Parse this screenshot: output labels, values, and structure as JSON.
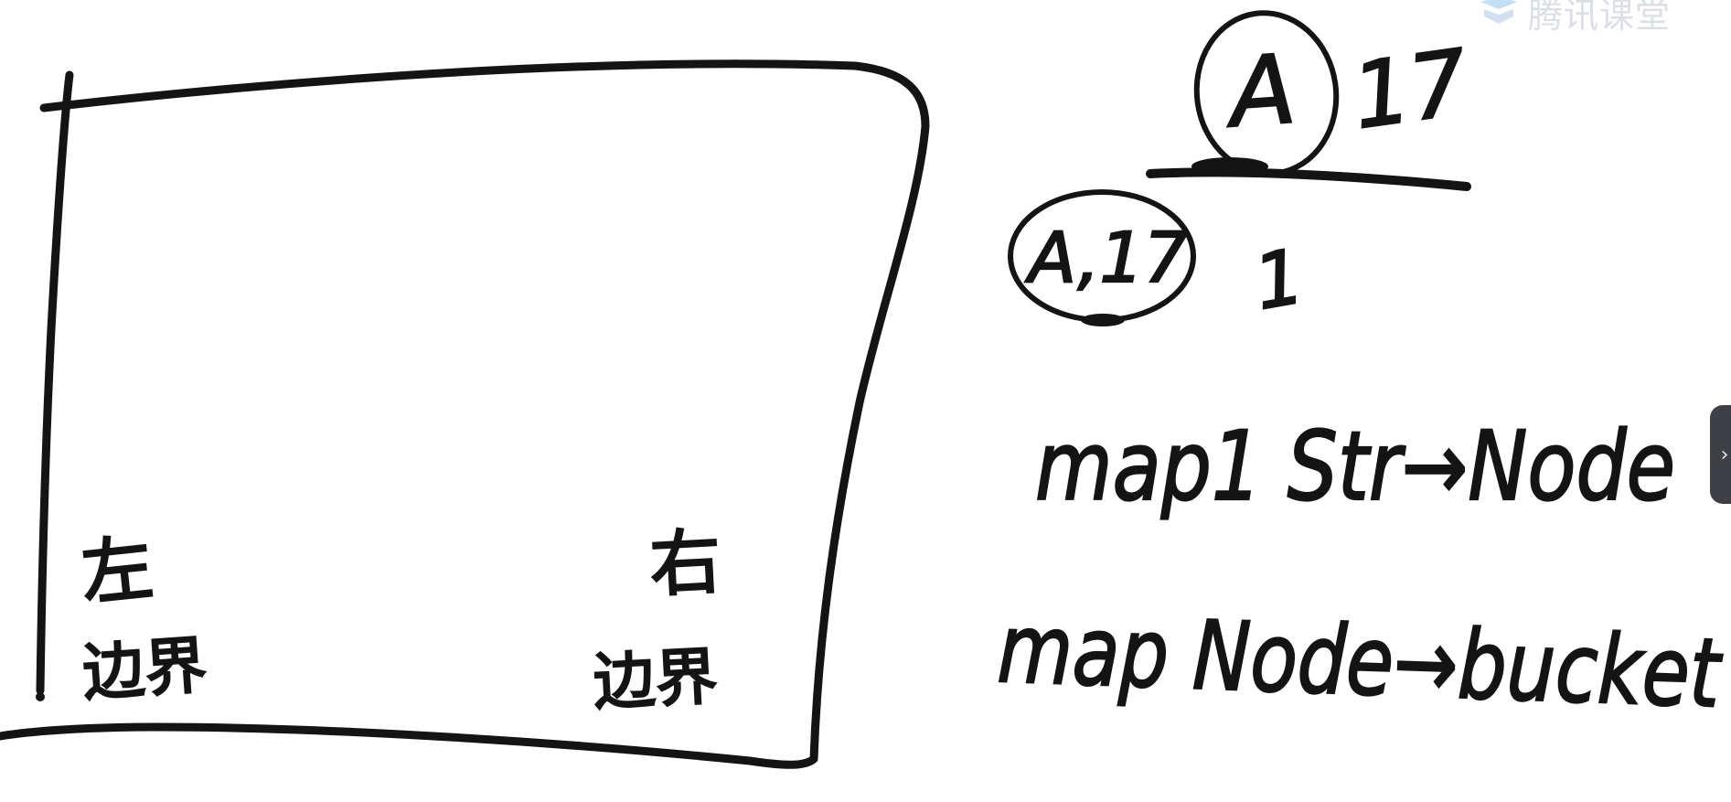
{
  "app": {
    "watermark_text": "腾讯课堂",
    "watermark_logo": "tencent-classroom-logo",
    "side_panel_icon": "chevron-right-icon",
    "side_panel_glyph": "›"
  },
  "board": {
    "ink_color": "#141414",
    "left_label_top": "左",
    "left_label_bottom": "边界",
    "right_label_top": "右",
    "right_label_bottom": "边界",
    "node_a_label": "A",
    "node_a_value": "17",
    "node_a_parent_label": "A,17",
    "node_a_parent_value": "1",
    "map1_line": "map1  Str→Node",
    "map2_line": "map Node→bucket"
  }
}
